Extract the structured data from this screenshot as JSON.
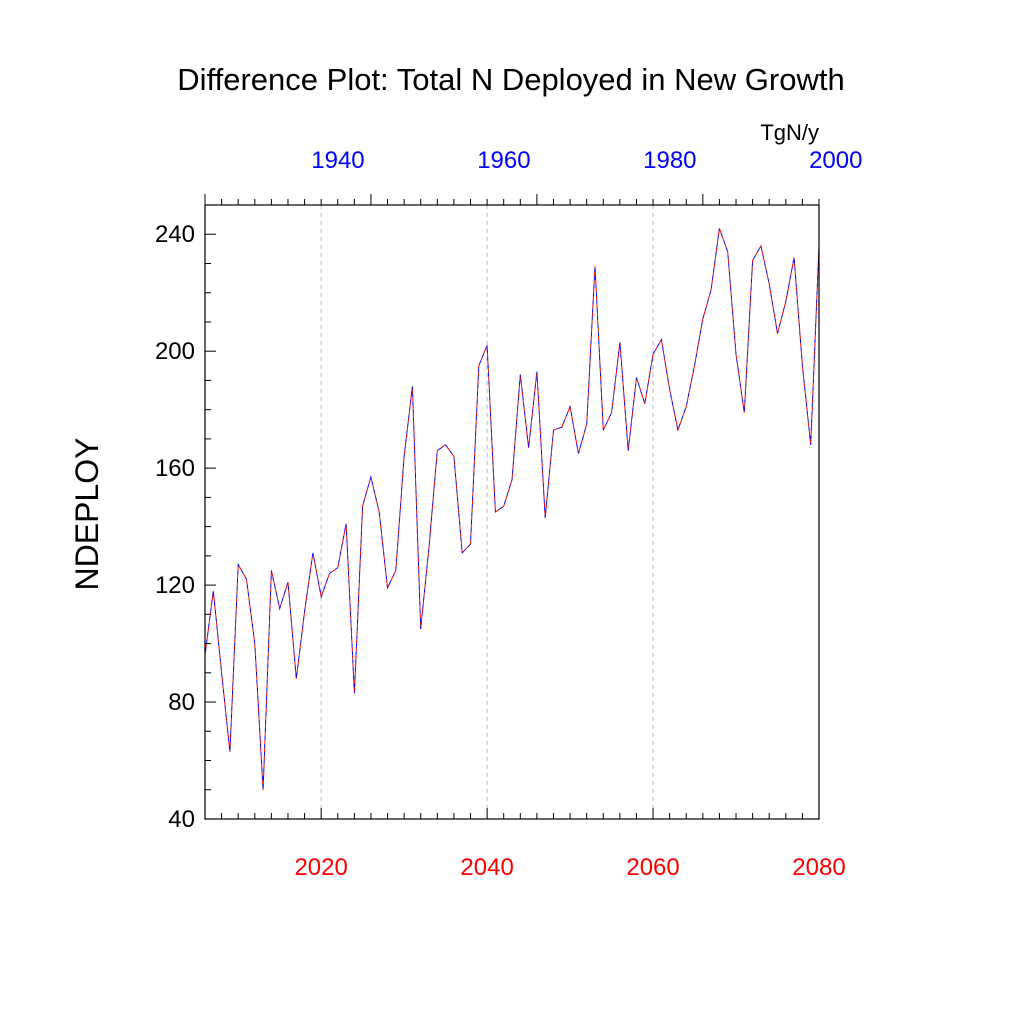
{
  "chart_data": {
    "type": "line",
    "title": "Difference Plot: Total N Deployed in New Growth",
    "ylabel": "NDEPLOY",
    "units": "TgN/y",
    "xlim": [
      2006,
      2080
    ],
    "ylim": [
      40,
      250
    ],
    "bottom_axis": {
      "ticks": [
        2020,
        2040,
        2060,
        2080
      ],
      "labels": [
        "2020",
        "2040",
        "2060",
        "2080"
      ],
      "color": "#ff0000"
    },
    "top_axis": {
      "ticks": [
        2026,
        2046,
        2066,
        2086
      ],
      "labels": [
        "1940",
        "1960",
        "1980",
        "2000"
      ],
      "color": "#0000ff"
    },
    "yticks": [
      40,
      80,
      120,
      160,
      200,
      240
    ],
    "ytick_labels": [
      "40",
      "80",
      "120",
      "160",
      "200",
      "240"
    ],
    "grid": "vertical dashed at labeled bottom ticks",
    "series": [
      {
        "name": "NDEPLOY",
        "style": "dashed",
        "colors": [
          "#ff0000",
          "#0000ff"
        ],
        "x": [
          2006,
          2007,
          2008,
          2009,
          2010,
          2011,
          2012,
          2013,
          2014,
          2015,
          2016,
          2017,
          2018,
          2019,
          2020,
          2021,
          2022,
          2023,
          2024,
          2025,
          2026,
          2027,
          2028,
          2029,
          2030,
          2031,
          2032,
          2033,
          2034,
          2035,
          2036,
          2037,
          2038,
          2039,
          2040,
          2041,
          2042,
          2043,
          2044,
          2045,
          2046,
          2047,
          2048,
          2049,
          2050,
          2051,
          2052,
          2053,
          2054,
          2055,
          2056,
          2057,
          2058,
          2059,
          2060,
          2061,
          2062,
          2063,
          2064,
          2065,
          2066,
          2067,
          2068,
          2069,
          2070,
          2071,
          2072,
          2073,
          2074,
          2075,
          2076,
          2077,
          2078,
          2079,
          2080
        ],
        "values": [
          96,
          118,
          90,
          63,
          127,
          122,
          100,
          50,
          125,
          112,
          121,
          88,
          111,
          131,
          116,
          124,
          126,
          141,
          83,
          147,
          157,
          145,
          119,
          125,
          164,
          188,
          105,
          133,
          166,
          168,
          164,
          131,
          134,
          195,
          202,
          145,
          147,
          156,
          192,
          167,
          193,
          143,
          173,
          174,
          181,
          165,
          175,
          229,
          173,
          179,
          203,
          166,
          191,
          182,
          199,
          204,
          187,
          173,
          181,
          195,
          211,
          221,
          242,
          234,
          199,
          179,
          231,
          236,
          223,
          206,
          217,
          232,
          195,
          168,
          236
        ]
      }
    ]
  }
}
